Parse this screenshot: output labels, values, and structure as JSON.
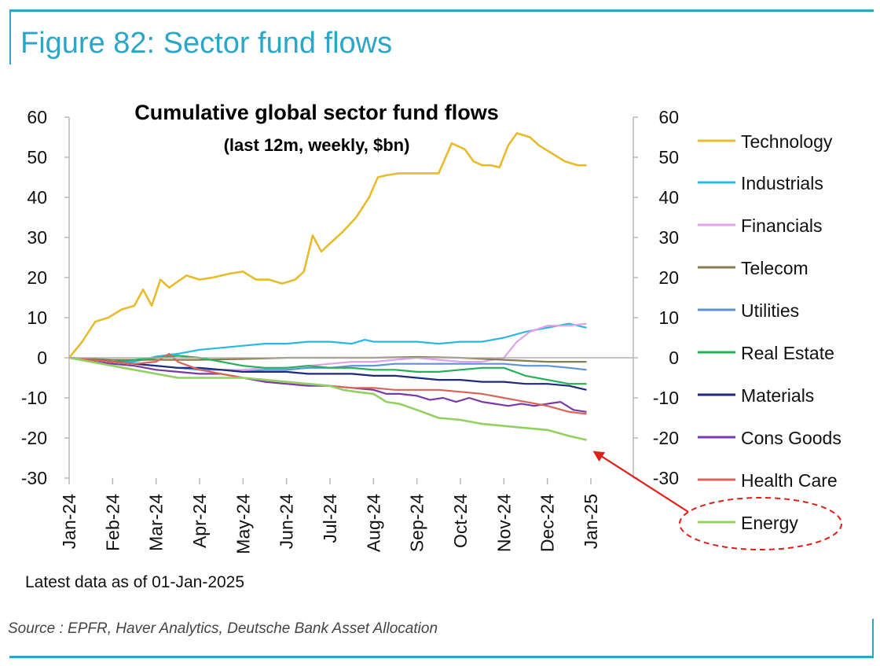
{
  "figure_title": "Figure 82: Sector fund flows",
  "note": "Latest data as of 01-Jan-2025",
  "source": "Source : EPFR, Haver Analytics, Deutsche Bank Asset Allocation",
  "colors": {
    "frame": "#2aa7c8",
    "annotation": "#e0201a"
  },
  "chart_data": {
    "type": "line",
    "title": "Cumulative global sector fund flows",
    "subtitle": "(last 12m, weekly, $bn)",
    "xlabel": "",
    "ylabel": "",
    "ylim": [
      -30,
      60
    ],
    "yticks": [
      "60",
      "50",
      "40",
      "30",
      "20",
      "10",
      "0",
      "-10",
      "-20",
      "-30"
    ],
    "yticks_right": [
      "60",
      "50",
      "40",
      "30",
      "20",
      "10",
      "0",
      "-10",
      "-20",
      "-30"
    ],
    "x_tick_labels": [
      "Jan-24",
      "Feb-24",
      "Mar-24",
      "Apr-24",
      "May-24",
      "Jun-24",
      "Jul-24",
      "Aug-24",
      "Sep-24",
      "Oct-24",
      "Nov-24",
      "Dec-24",
      "Jan-25"
    ],
    "x_range_months": [
      0,
      12
    ],
    "grid": false,
    "legend_position": "right",
    "series": [
      {
        "name": "Technology",
        "color": "#e8bb2a",
        "x": [
          0,
          0.3,
          0.6,
          0.9,
          1.2,
          1.5,
          1.7,
          1.9,
          2.1,
          2.3,
          2.5,
          2.7,
          3,
          3.3,
          3.7,
          4,
          4.3,
          4.6,
          4.9,
          5.2,
          5.4,
          5.6,
          5.8,
          6,
          6.3,
          6.6,
          6.9,
          7.1,
          7.3,
          7.6,
          7.9,
          8.2,
          8.5,
          8.8,
          9.1,
          9.3,
          9.5,
          9.7,
          9.9,
          10.1,
          10.3,
          10.6,
          10.8,
          11.1,
          11.4,
          11.7,
          11.9
        ],
        "y": [
          0,
          4,
          9,
          10,
          12,
          13,
          17,
          13,
          19.5,
          17.5,
          19,
          20.5,
          19.5,
          20,
          21,
          21.5,
          19.5,
          19.5,
          18.5,
          19.5,
          21.5,
          30.5,
          26.5,
          28.5,
          31.5,
          35,
          40,
          45,
          45.5,
          46,
          46,
          46,
          46,
          53.5,
          52,
          49,
          48,
          48,
          47.5,
          53,
          56,
          55,
          53,
          51,
          49,
          48,
          48
        ]
      },
      {
        "name": "Industrials",
        "color": "#2ab8e0",
        "x": [
          0,
          0.5,
          1,
          1.5,
          2,
          2.5,
          3,
          3.5,
          4,
          4.5,
          5,
          5.5,
          6,
          6.5,
          6.8,
          7,
          7.5,
          8,
          8.5,
          9,
          9.5,
          10,
          10.5,
          11,
          11.5,
          11.9
        ],
        "y": [
          0,
          -0.5,
          -1,
          -1,
          0.3,
          1,
          2,
          2.5,
          3,
          3.5,
          3.5,
          4,
          4,
          3.5,
          4.5,
          4,
          4,
          4,
          3.5,
          4,
          4,
          5,
          6.5,
          7.5,
          8.5,
          7.5
        ]
      },
      {
        "name": "Financials",
        "color": "#e0a2e8",
        "x": [
          0,
          0.5,
          1,
          1.5,
          2,
          2.5,
          3,
          3.5,
          4,
          4.5,
          5,
          5.5,
          6,
          6.5,
          7,
          7.5,
          8,
          8.5,
          9,
          9.5,
          10,
          10.3,
          10.6,
          11,
          11.5,
          11.9
        ],
        "y": [
          0,
          -0.5,
          -1,
          -1.5,
          -2,
          -2.5,
          -3,
          -3,
          -3,
          -2.5,
          -2.5,
          -2,
          -1.5,
          -1,
          -1,
          -0.5,
          0,
          -0.5,
          -1,
          -1,
          0,
          4,
          6.5,
          8,
          8,
          8.5
        ]
      },
      {
        "name": "Telecom",
        "color": "#8a7c52",
        "x": [
          0,
          1,
          2,
          3,
          4,
          5,
          6,
          7,
          8,
          9,
          10,
          11,
          11.9
        ],
        "y": [
          0,
          -0.5,
          -0.5,
          -0.5,
          -0.3,
          0,
          0,
          0,
          0.2,
          0,
          -0.5,
          -1,
          -1
        ]
      },
      {
        "name": "Utilities",
        "color": "#5b93d6",
        "x": [
          0,
          0.5,
          1,
          1.5,
          2,
          2.5,
          3,
          3.5,
          4,
          4.5,
          5,
          5.5,
          6,
          6.5,
          7,
          7.5,
          8,
          8.5,
          9,
          9.5,
          10,
          10.5,
          11,
          11.5,
          11.9
        ],
        "y": [
          0,
          -0.5,
          -1,
          -1.5,
          -2,
          -2.5,
          -3,
          -3,
          -3.5,
          -3,
          -3,
          -2.5,
          -2.5,
          -2,
          -2,
          -1.5,
          -1.5,
          -1.5,
          -1.5,
          -1.5,
          -1.5,
          -2,
          -2,
          -2.5,
          -3
        ]
      },
      {
        "name": "Real Estate",
        "color": "#22b05a",
        "x": [
          0,
          0.5,
          1,
          1.5,
          2,
          2.5,
          3,
          3.5,
          4,
          4.5,
          5,
          5.5,
          6,
          6.5,
          7,
          7.5,
          8,
          8.5,
          9,
          9.5,
          10,
          10.5,
          11,
          11.5,
          11.9
        ],
        "y": [
          0,
          -0.5,
          -1,
          -0.5,
          0,
          0.5,
          0,
          -1,
          -2,
          -2.5,
          -2.5,
          -2,
          -2.5,
          -2.5,
          -3,
          -3,
          -3.5,
          -3.5,
          -3,
          -2.5,
          -2.5,
          -4.5,
          -5.5,
          -6.5,
          -6.5
        ]
      },
      {
        "name": "Materials",
        "color": "#1f2a7a",
        "x": [
          0,
          0.5,
          1,
          1.5,
          2,
          2.5,
          3,
          3.5,
          4,
          4.5,
          5,
          5.5,
          6,
          6.5,
          7,
          7.5,
          8,
          8.5,
          9,
          9.5,
          10,
          10.5,
          11,
          11.5,
          11.9
        ],
        "y": [
          0,
          -0.5,
          -1,
          -1.5,
          -2,
          -2.5,
          -2.5,
          -3,
          -3.5,
          -3.5,
          -3.5,
          -4,
          -4,
          -4,
          -4.5,
          -4.5,
          -5,
          -5.5,
          -5.5,
          -6,
          -6,
          -6.5,
          -6.5,
          -7,
          -8
        ]
      },
      {
        "name": "Cons Goods",
        "color": "#7a3aa8",
        "x": [
          0,
          0.5,
          1,
          1.5,
          2,
          2.5,
          3,
          3.5,
          4,
          4.5,
          5,
          5.5,
          6,
          6.5,
          7,
          7.3,
          7.6,
          8,
          8.3,
          8.6,
          8.9,
          9.2,
          9.5,
          9.8,
          10.1,
          10.4,
          10.7,
          11,
          11.3,
          11.6,
          11.9
        ],
        "y": [
          0,
          -1,
          -1.5,
          -2,
          -3,
          -3.5,
          -4,
          -4,
          -5,
          -6,
          -6.5,
          -7,
          -7,
          -7.5,
          -8,
          -9,
          -9,
          -9.5,
          -10.5,
          -10,
          -11,
          -10,
          -11,
          -11.5,
          -12,
          -11.5,
          -12,
          -11.5,
          -11,
          -13,
          -13.5
        ]
      },
      {
        "name": "Health Care",
        "color": "#d8645a",
        "x": [
          0,
          0.5,
          1,
          1.5,
          2,
          2.3,
          2.5,
          3,
          3.5,
          4,
          4.5,
          5,
          5.5,
          6,
          6.5,
          7,
          7.5,
          8,
          8.5,
          9,
          9.5,
          10,
          10.5,
          11,
          11.5,
          11.9
        ],
        "y": [
          0,
          -0.5,
          -1,
          -1.5,
          -1,
          1,
          -1,
          -3,
          -4,
          -5,
          -5.5,
          -6,
          -6.5,
          -7,
          -7.5,
          -7.5,
          -8,
          -8,
          -8,
          -8.5,
          -9,
          -10,
          -11,
          -12,
          -13.5,
          -14
        ]
      },
      {
        "name": "Energy",
        "color": "#92d060",
        "x": [
          0,
          0.5,
          1,
          1.5,
          2,
          2.5,
          3,
          3.5,
          4,
          4.5,
          5,
          5.5,
          6,
          6.3,
          6.6,
          7,
          7.3,
          7.6,
          8,
          8.5,
          9,
          9.5,
          10,
          10.5,
          11,
          11.5,
          11.9
        ],
        "y": [
          0,
          -1,
          -2,
          -3,
          -4,
          -5,
          -5,
          -5,
          -5,
          -5.5,
          -6,
          -6.5,
          -7,
          -8,
          -8.5,
          -9,
          -11,
          -11.5,
          -13,
          -15,
          -15.5,
          -16.5,
          -17,
          -17.5,
          -18,
          -19.5,
          -20.5
        ]
      }
    ]
  }
}
